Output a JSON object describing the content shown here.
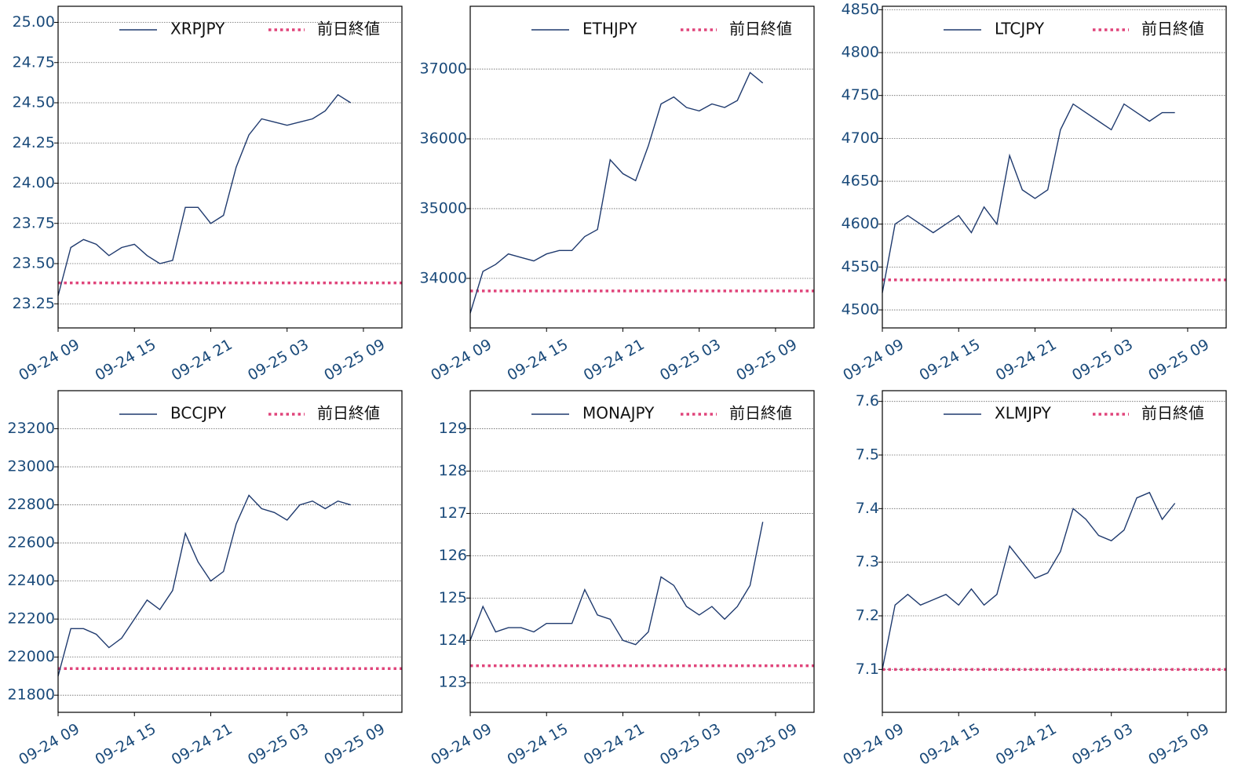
{
  "chart_data": [
    {
      "type": "line",
      "legend": "upper right",
      "grid": true,
      "x": [
        "09-24 09",
        "09-24 10",
        "09-24 11",
        "09-24 12",
        "09-24 13",
        "09-24 14",
        "09-24 15",
        "09-24 16",
        "09-24 17",
        "09-24 18",
        "09-24 19",
        "09-24 20",
        "09-24 21",
        "09-24 22",
        "09-24 23",
        "09-25 00",
        "09-25 01",
        "09-25 02",
        "09-25 03",
        "09-25 04",
        "09-25 05",
        "09-25 06",
        "09-25 07",
        "09-25 08",
        "09-25 09"
      ],
      "xticks": [
        "09-24 09",
        "09-24 15",
        "09-24 21",
        "09-25 03",
        "09-25 09"
      ],
      "series": [
        {
          "name": "XRPJPY",
          "color": "#1f3a6e",
          "values": [
            23.3,
            23.6,
            23.65,
            23.62,
            23.55,
            23.6,
            23.62,
            23.55,
            23.5,
            23.52,
            23.85,
            23.85,
            23.75,
            23.8,
            24.1,
            24.3,
            24.4,
            24.38,
            24.36,
            24.38,
            24.4,
            24.45,
            24.55,
            24.5,
            null
          ]
        }
      ],
      "reference_line": {
        "name": "前日終値",
        "value": 23.38,
        "color": "#e0457b"
      },
      "ylim": [
        23.1,
        25.1
      ],
      "yticks": [
        23.25,
        {
          "value": 23.5,
          "label": "23.50"
        },
        23.75,
        {
          "value": 24,
          "label": "24.00"
        },
        24.25,
        {
          "value": 24.5,
          "label": "24.50"
        },
        24.75,
        {
          "value": 25,
          "label": "25.00"
        }
      ]
    },
    {
      "type": "line",
      "legend": "upper right",
      "grid": true,
      "x": [
        "09-24 09",
        "09-24 10",
        "09-24 11",
        "09-24 12",
        "09-24 13",
        "09-24 14",
        "09-24 15",
        "09-24 16",
        "09-24 17",
        "09-24 18",
        "09-24 19",
        "09-24 20",
        "09-24 21",
        "09-24 22",
        "09-24 23",
        "09-25 00",
        "09-25 01",
        "09-25 02",
        "09-25 03",
        "09-25 04",
        "09-25 05",
        "09-25 06",
        "09-25 07",
        "09-25 08",
        "09-25 09"
      ],
      "xticks": [
        "09-24 09",
        "09-24 15",
        "09-24 21",
        "09-25 03",
        "09-25 09"
      ],
      "series": [
        {
          "name": "ETHJPY",
          "color": "#1f3a6e",
          "values": [
            33500,
            34100,
            34200,
            34350,
            34300,
            34250,
            34350,
            34400,
            34400,
            34600,
            34700,
            35700,
            35500,
            35400,
            35900,
            36500,
            36600,
            36450,
            36400,
            36500,
            36450,
            36550,
            36950,
            36800,
            null
          ]
        }
      ],
      "reference_line": {
        "name": "前日終値",
        "value": 33820,
        "color": "#e0457b"
      },
      "ylim": [
        33290,
        37900
      ],
      "yticks": [
        34000,
        35000,
        36000,
        37000
      ]
    },
    {
      "type": "line",
      "legend": "upper right",
      "grid": true,
      "x": [
        "09-24 09",
        "09-24 10",
        "09-24 11",
        "09-24 12",
        "09-24 13",
        "09-24 14",
        "09-24 15",
        "09-24 16",
        "09-24 17",
        "09-24 18",
        "09-24 19",
        "09-24 20",
        "09-24 21",
        "09-24 22",
        "09-24 23",
        "09-25 00",
        "09-25 01",
        "09-25 02",
        "09-25 03",
        "09-25 04",
        "09-25 05",
        "09-25 06",
        "09-25 07",
        "09-25 08",
        "09-25 09"
      ],
      "xticks": [
        "09-24 09",
        "09-24 15",
        "09-24 21",
        "09-25 03",
        "09-25 09"
      ],
      "series": [
        {
          "name": "LTCJPY",
          "color": "#1f3a6e",
          "values": [
            4520,
            4600,
            4610,
            4600,
            4590,
            4600,
            4610,
            4590,
            4620,
            4600,
            4680,
            4640,
            4630,
            4640,
            4710,
            4740,
            4730,
            4720,
            4710,
            4740,
            4730,
            4720,
            4730,
            4730,
            null
          ]
        }
      ],
      "reference_line": {
        "name": "前日終値",
        "value": 4535,
        "color": "#e0457b"
      },
      "ylim": [
        4479,
        4854
      ],
      "yticks": [
        4500,
        4550,
        4600,
        4650,
        4700,
        4750,
        4800,
        4850
      ]
    },
    {
      "type": "line",
      "legend": "upper right",
      "grid": true,
      "x": [
        "09-24 09",
        "09-24 10",
        "09-24 11",
        "09-24 12",
        "09-24 13",
        "09-24 14",
        "09-24 15",
        "09-24 16",
        "09-24 17",
        "09-24 18",
        "09-24 19",
        "09-24 20",
        "09-24 21",
        "09-24 22",
        "09-24 23",
        "09-25 00",
        "09-25 01",
        "09-25 02",
        "09-25 03",
        "09-25 04",
        "09-25 05",
        "09-25 06",
        "09-25 07",
        "09-25 08",
        "09-25 09"
      ],
      "xticks": [
        "09-24 09",
        "09-24 15",
        "09-24 21",
        "09-25 03",
        "09-25 09"
      ],
      "series": [
        {
          "name": "BCCJPY",
          "color": "#1f3a6e",
          "values": [
            21900,
            22150,
            22150,
            22120,
            22050,
            22100,
            22200,
            22300,
            22250,
            22350,
            22650,
            22500,
            22400,
            22450,
            22700,
            22850,
            22780,
            22760,
            22720,
            22800,
            22820,
            22780,
            22820,
            22800,
            null
          ]
        }
      ],
      "reference_line": {
        "name": "前日終値",
        "value": 21940,
        "color": "#e0457b"
      },
      "ylim": [
        21710,
        23400
      ],
      "yticks": [
        21800,
        22000,
        22200,
        22400,
        22600,
        22800,
        23000,
        23200
      ]
    },
    {
      "type": "line",
      "legend": "upper right",
      "grid": true,
      "x": [
        "09-24 09",
        "09-24 10",
        "09-24 11",
        "09-24 12",
        "09-24 13",
        "09-24 14",
        "09-24 15",
        "09-24 16",
        "09-24 17",
        "09-24 18",
        "09-24 19",
        "09-24 20",
        "09-24 21",
        "09-24 22",
        "09-24 23",
        "09-25 00",
        "09-25 01",
        "09-25 02",
        "09-25 03",
        "09-25 04",
        "09-25 05",
        "09-25 06",
        "09-25 07",
        "09-25 08",
        "09-25 09"
      ],
      "xticks": [
        "09-24 09",
        "09-24 15",
        "09-24 21",
        "09-25 03",
        "09-25 09"
      ],
      "series": [
        {
          "name": "MONAJPY",
          "color": "#1f3a6e",
          "values": [
            124,
            124.8,
            124.2,
            124.3,
            124.3,
            124.2,
            124.4,
            124.4,
            124.4,
            125.2,
            124.6,
            124.5,
            124,
            123.9,
            124.2,
            125.5,
            125.3,
            124.8,
            124.6,
            124.8,
            124.5,
            124.8,
            125.3,
            126.8,
            null
          ]
        }
      ],
      "reference_line": {
        "name": "前日終値",
        "value": 123.4,
        "color": "#e0457b"
      },
      "ylim": [
        122.3,
        129.9
      ],
      "yticks": [
        123,
        124,
        125,
        126,
        127,
        128,
        129
      ]
    },
    {
      "type": "line",
      "legend": "upper right",
      "grid": true,
      "x": [
        "09-24 09",
        "09-24 10",
        "09-24 11",
        "09-24 12",
        "09-24 13",
        "09-24 14",
        "09-24 15",
        "09-24 16",
        "09-24 17",
        "09-24 18",
        "09-24 19",
        "09-24 20",
        "09-24 21",
        "09-24 22",
        "09-24 23",
        "09-25 00",
        "09-25 01",
        "09-25 02",
        "09-25 03",
        "09-25 04",
        "09-25 05",
        "09-25 06",
        "09-25 07",
        "09-25 08",
        "09-25 09"
      ],
      "xticks": [
        "09-24 09",
        "09-24 15",
        "09-24 21",
        "09-25 03",
        "09-25 09"
      ],
      "series": [
        {
          "name": "XLMJPY",
          "color": "#1f3a6e",
          "values": [
            7.1,
            7.22,
            7.24,
            7.22,
            7.23,
            7.24,
            7.22,
            7.25,
            7.22,
            7.24,
            7.33,
            7.3,
            7.27,
            7.28,
            7.32,
            7.4,
            7.38,
            7.35,
            7.34,
            7.36,
            7.42,
            7.43,
            7.38,
            7.41,
            null
          ]
        }
      ],
      "reference_line": {
        "name": "前日終値",
        "value": 7.1,
        "color": "#e0457b"
      },
      "ylim": [
        7.02,
        7.62
      ],
      "yticks": [
        7.1,
        7.2,
        7.3,
        7.4,
        7.5,
        7.6
      ]
    }
  ]
}
